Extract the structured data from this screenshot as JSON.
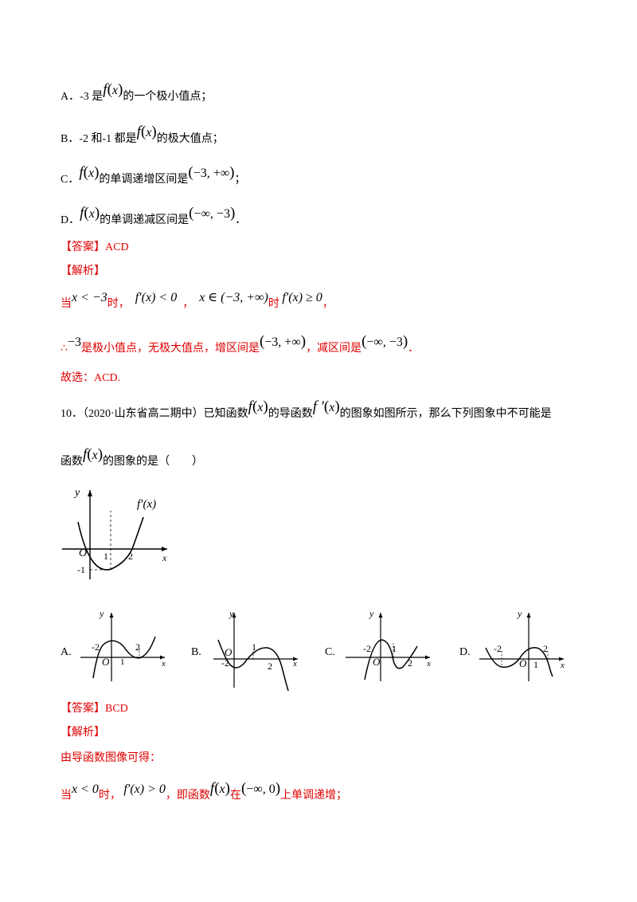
{
  "optA": {
    "label": "A．",
    "pre": "-3 是",
    "fx": "f",
    "fx_arg": "x",
    "post": "的一个极小值点；"
  },
  "optB": {
    "label": "B．",
    "pre": "-2 和-1 都是",
    "fx": "f",
    "fx_arg": "x",
    "post": "的极大值点；"
  },
  "optC": {
    "label": "C．",
    "fx": "f",
    "fx_arg": "x",
    "mid": "的单调递增区间是",
    "interval": "−3, +∞",
    "end": "；"
  },
  "optD": {
    "label": "D．",
    "fx": "f",
    "fx_arg": "x",
    "mid": "的单调递减区间是",
    "interval": "−∞, −3",
    "end": "．"
  },
  "ans9": {
    "tag": "【答案】",
    "value": "ACD"
  },
  "sol9": {
    "tag": "【解析】",
    "l1_when": "当",
    "l1_cond": "x < −3",
    "l1_shi": "时，",
    "l1_deriv": "f′(x) < 0",
    "l1_comma": "，",
    "l1_set": "x ∈ (−3, +∞)",
    "l1_shi2": "时",
    "l1_deriv2": "f′(x) ≥ 0",
    "l1_end": "，",
    "l2_therefore": "∴",
    "l2_val": "−3",
    "l2_text": "是极小值点，无极大值点，增区间是",
    "l2_inc": "−3, +∞",
    "l2_text2": "，减区间是",
    "l2_dec": "−∞, −3",
    "l2_end": "．",
    "l3": "故选：ACD."
  },
  "q10": {
    "num": "10．",
    "src": "（2020·山东省高二期中）已知函数",
    "fx": "f",
    "fx_arg": "x",
    "mid": "的导函数",
    "fpx": "f ′",
    "fpx_arg": "x",
    "end": "的图象如图所示，那么下列图象中不可能是",
    "l2_pre": "函数",
    "l2_post": "的图象的是（　　）"
  },
  "graph_main": {
    "y": "y",
    "x": "x",
    "o": "O",
    "one": "1",
    "two": "2",
    "neg1": "-1",
    "label": "f′(x)"
  },
  "choices": [
    {
      "label": "A.",
      "y": "y",
      "x": "x",
      "ticks": [
        "-2",
        "O",
        "1",
        "2"
      ]
    },
    {
      "label": "B.",
      "y": "y",
      "x": "x",
      "ticks": [
        "-2",
        "O",
        "1",
        "2"
      ]
    },
    {
      "label": "C.",
      "y": "y",
      "x": "x",
      "ticks": [
        "-2",
        "O",
        "1",
        "2"
      ]
    },
    {
      "label": "D.",
      "y": "y",
      "x": "x",
      "ticks": [
        "-2",
        "O",
        "1",
        "2"
      ]
    }
  ],
  "ans10": {
    "tag": "【答案】",
    "value": "BCD"
  },
  "sol10": {
    "tag": "【解析】",
    "l1": "由导函数图像可得：",
    "l2_when": "当",
    "l2_cond": "x < 0",
    "l2_shi": "时，",
    "l2_deriv": "f′(x) > 0",
    "l2_text": "，即函数",
    "l2_fx": "f",
    "l2_fx_arg": "x",
    "l2_in": "在",
    "l2_int": "−∞, 0",
    "l2_end": "上单调递增；"
  },
  "colors": {
    "red": "#e00000",
    "black": "#000000"
  }
}
